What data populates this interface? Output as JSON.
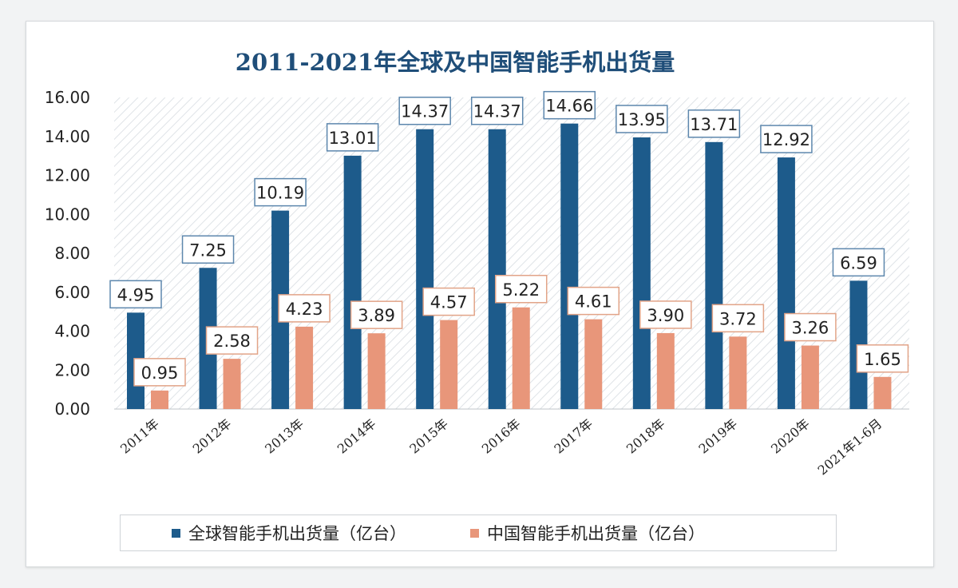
{
  "chart_data": {
    "type": "bar",
    "title": "2011-2021年全球及中国智能手机出货量",
    "categories": [
      "2011年",
      "2012年",
      "2013年",
      "2014年",
      "2015年",
      "2016年",
      "2017年",
      "2018年",
      "2019年",
      "2020年",
      "2021年1-6月"
    ],
    "series": [
      {
        "name": "全球智能手机出货量（亿台）",
        "color": "#1d5b8b",
        "values": [
          4.95,
          7.25,
          10.19,
          13.01,
          14.37,
          14.37,
          14.66,
          13.95,
          13.71,
          12.92,
          6.59
        ]
      },
      {
        "name": "中国智能手机出货量（亿台）",
        "color": "#e8967a",
        "values": [
          0.95,
          2.58,
          4.23,
          3.89,
          4.57,
          5.22,
          4.61,
          3.9,
          3.72,
          3.26,
          1.65
        ]
      }
    ],
    "yticks": [
      "0.00",
      "2.00",
      "4.00",
      "6.00",
      "8.00",
      "10.00",
      "12.00",
      "14.00",
      "16.00"
    ],
    "ylim": [
      0,
      16
    ],
    "legend_position": "bottom"
  }
}
